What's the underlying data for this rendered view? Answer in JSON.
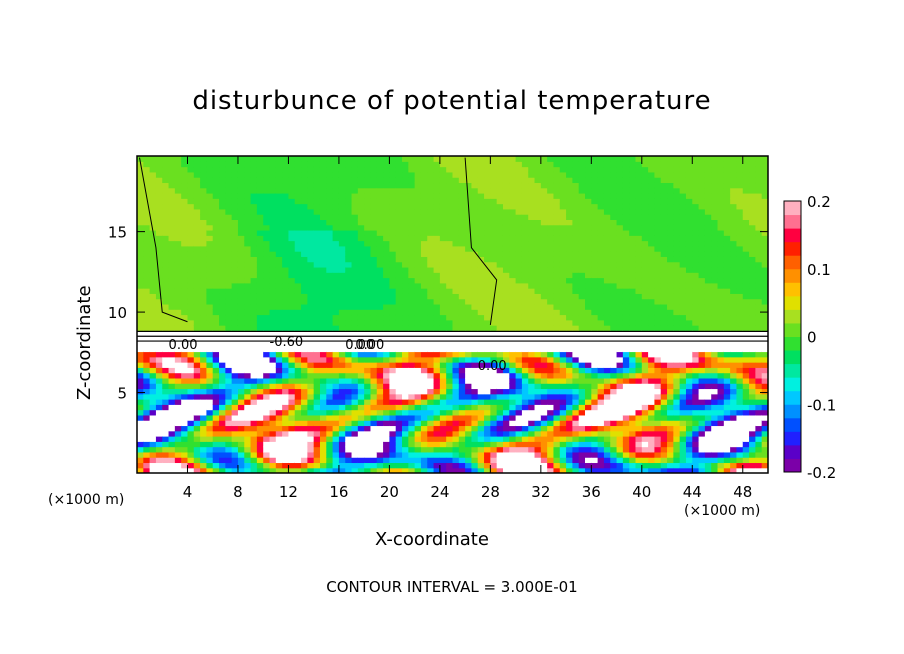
{
  "chart_data": {
    "type": "heatmap",
    "title": "disturbunce of potential temperature",
    "xlabel": "X-coordinate",
    "ylabel": "Z-coordinate",
    "x_unit": "(×1000 m)",
    "x_ticks": [
      4,
      8,
      12,
      16,
      20,
      24,
      28,
      32,
      36,
      40,
      44,
      48
    ],
    "y_ticks": [
      5,
      10,
      15
    ],
    "xlim": [
      0,
      50
    ],
    "ylim": [
      0,
      19.7
    ],
    "colorbar": {
      "min": -0.2,
      "max": 0.2,
      "tick_labels": [
        "0.2",
        "0.1",
        "0",
        "-0.1",
        "-0.2"
      ],
      "colors": [
        "#7b00a8",
        "#5a00c8",
        "#2020ff",
        "#0050ff",
        "#0090ff",
        "#00c8ff",
        "#00f0e0",
        "#00e8a0",
        "#00e060",
        "#30e030",
        "#6ae020",
        "#a8e020",
        "#e0e000",
        "#ffc000",
        "#ff9000",
        "#ff6000",
        "#ff2000",
        "#ff0040",
        "#ff7090",
        "#ffb0c0"
      ]
    },
    "annotation": "CONTOUR INTERVAL = 3.000E-01",
    "contour_labels": [
      "0.00",
      "-0.60",
      "0.00",
      "0.00",
      "0.00"
    ]
  }
}
